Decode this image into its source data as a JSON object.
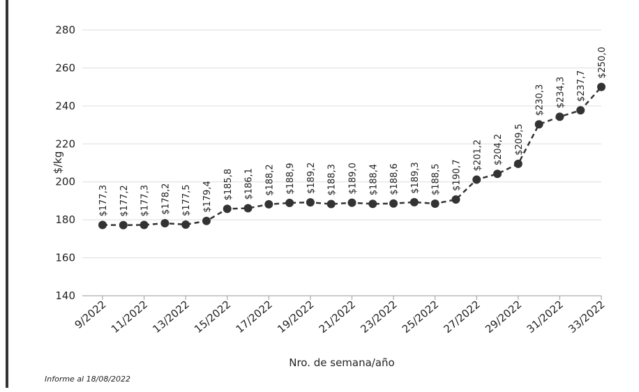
{
  "chart_data": {
    "type": "line",
    "x_label": "Nro. de semana/año",
    "y_label": "$/kg",
    "footnote": "Informe al 18/08/2022",
    "categories": [
      "9/2022",
      null,
      "11/2022",
      null,
      "13/2022",
      null,
      "15/2022",
      null,
      "17/2022",
      null,
      "19/2022",
      null,
      "21/2022",
      null,
      "23/2022",
      null,
      "25/2022",
      null,
      "27/2022",
      null,
      "29/2022",
      null,
      "31/2022",
      null,
      "33/2022"
    ],
    "series": [
      {
        "name": "$/kg",
        "color": "#333333",
        "values": [
          177.3,
          177.2,
          177.3,
          178.2,
          177.5,
          179.4,
          185.8,
          186.1,
          188.2,
          188.9,
          189.2,
          188.3,
          189.0,
          188.4,
          188.6,
          189.3,
          188.5,
          190.7,
          201.2,
          204.2,
          209.5,
          230.3,
          234.3,
          237.7,
          250.0
        ],
        "value_labels": [
          "$177,3",
          "$177,2",
          "$177,3",
          "$178,2",
          "$177,5",
          "$179,4",
          "$185,8",
          "$186,1",
          "$188,2",
          "$188,9",
          "$189,2",
          "$188,3",
          "$189,0",
          "$188,4",
          "$188,6",
          "$189,3",
          "$188,5",
          "$190,7",
          "$201,2",
          "$204,2",
          "$209,5",
          "$230,3",
          "$234,3",
          "$237,7",
          "$250,0"
        ]
      }
    ],
    "ylim": [
      140,
      280
    ],
    "yticks": [
      140,
      160,
      180,
      200,
      220,
      240,
      260,
      280
    ],
    "grid": true
  }
}
